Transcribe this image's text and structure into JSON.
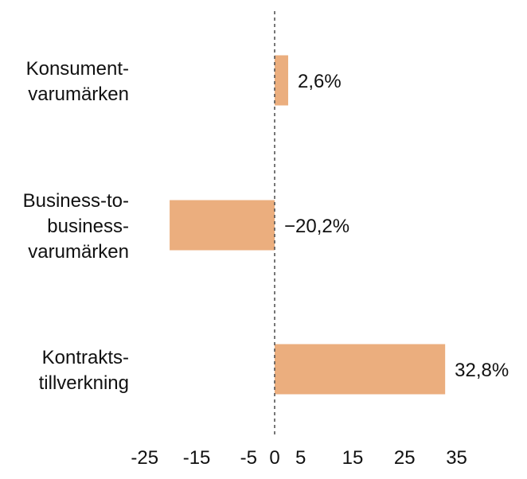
{
  "chart_data": {
    "type": "bar",
    "orientation": "horizontal",
    "categories": [
      [
        "Konsument-",
        "varumärken"
      ],
      [
        "Business-to-",
        "business-",
        "varumärken"
      ],
      [
        "Kontrakts-",
        "tillverkning"
      ]
    ],
    "values": [
      2.6,
      -20.2,
      32.8
    ],
    "value_labels": [
      "2,6%",
      "−20,2%",
      "32,8%"
    ],
    "xticks": [
      -25,
      -15,
      -5,
      0,
      5,
      15,
      25,
      35
    ],
    "xtick_labels": [
      "-25",
      "-15",
      "-5",
      "0",
      "5",
      "15",
      "25",
      "35"
    ],
    "xlim": [
      -27,
      40
    ],
    "bar_color": "#ebae7e",
    "zero_line": "dashed",
    "grid": false,
    "title": "",
    "xlabel": "",
    "ylabel": ""
  }
}
